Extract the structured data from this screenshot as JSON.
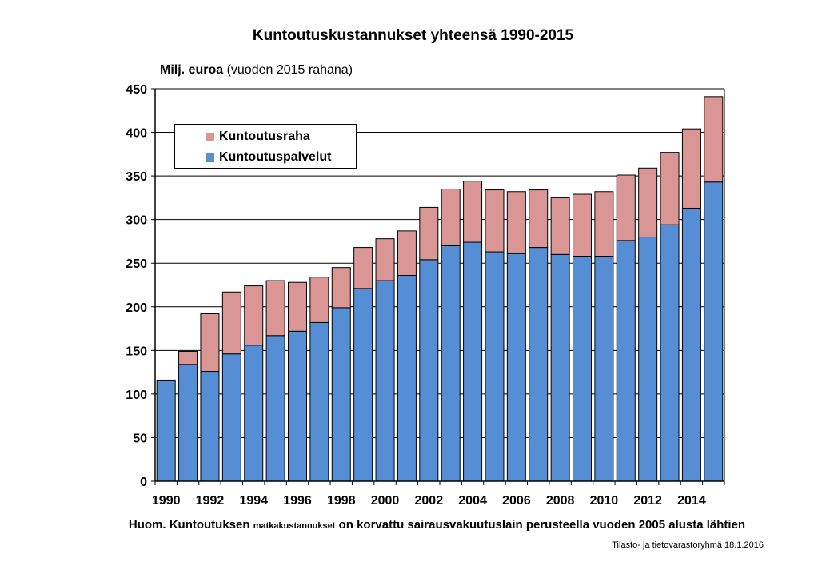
{
  "title": "Kuntoutuskustannukset yhteensä 1990-2015",
  "ylabel_bold": "Milj. euroa",
  "ylabel_rest": "(vuoden 2015 rahana)",
  "note": {
    "part1": "Huom. Kuntoutuksen",
    "part2": "matkakustannukset",
    "part3": "on korvattu sairausvakuutuslain perusteella vuoden 2005 alusta lähtien"
  },
  "credit": "Tilasto- ja tietovarastoryhmä 18.1.2016",
  "colors": {
    "services": "#558ed5",
    "allowance": "#d99694",
    "grid": "#000000"
  },
  "chart_data": {
    "type": "bar",
    "stacked": true,
    "title": "Kuntoutuskustannukset yhteensä 1990-2015",
    "ylabel": "Milj. euroa (vuoden 2015 rahana)",
    "ylim": [
      0,
      450
    ],
    "yticks": [
      0,
      50,
      100,
      150,
      200,
      250,
      300,
      350,
      400,
      450
    ],
    "xtick_labels": [
      "1990",
      "1992",
      "1994",
      "1996",
      "1998",
      "2000",
      "2002",
      "2004",
      "2006",
      "2008",
      "2010",
      "2012",
      "2014"
    ],
    "categories": [
      1990,
      1991,
      1992,
      1993,
      1994,
      1995,
      1996,
      1997,
      1998,
      1999,
      2000,
      2001,
      2002,
      2003,
      2004,
      2005,
      2006,
      2007,
      2008,
      2009,
      2010,
      2011,
      2012,
      2013,
      2014,
      2015
    ],
    "grid": "horizontal",
    "legend_position": "top-left",
    "series": [
      {
        "name": "Kuntoutuspalvelut",
        "color": "#558ed5",
        "values": [
          116,
          134,
          126,
          146,
          156,
          167,
          172,
          182,
          199,
          221,
          230,
          236,
          254,
          270,
          274,
          263,
          261,
          268,
          260,
          258,
          258,
          276,
          280,
          294,
          313,
          343
        ]
      },
      {
        "name": "Kuntoutusraha",
        "color": "#d99694",
        "values": [
          0,
          15,
          66,
          71,
          68,
          63,
          56,
          52,
          46,
          47,
          48,
          51,
          60,
          65,
          70,
          71,
          71,
          66,
          65,
          71,
          74,
          75,
          79,
          83,
          91,
          98
        ]
      }
    ]
  }
}
